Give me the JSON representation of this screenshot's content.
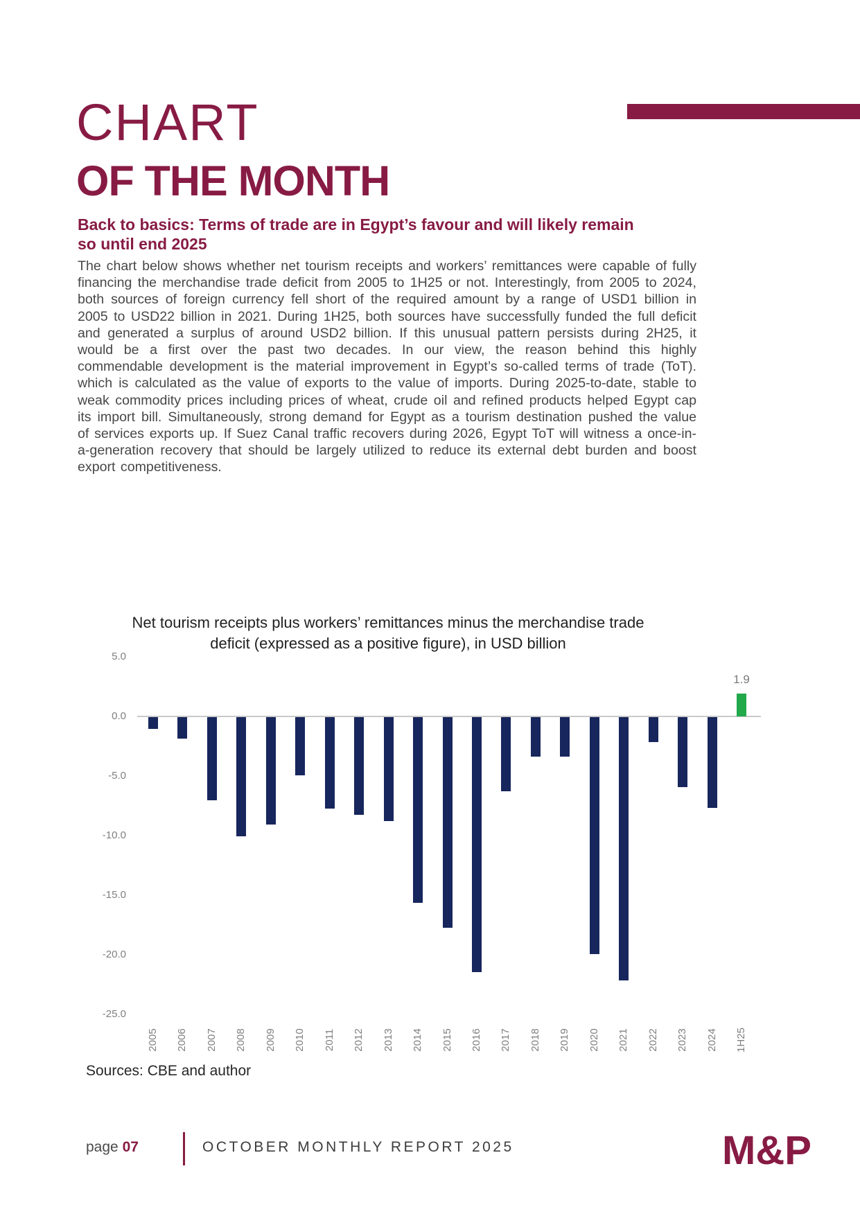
{
  "header": {
    "title_line1": "CHART",
    "title_line2": "OF THE MONTH",
    "subtitle_line1": "Back to basics: Terms of trade are in Egypt’s favour and will likely remain",
    "subtitle_line2": "so until end 2025"
  },
  "body_text": "The chart below shows whether net tourism receipts and workers’ remittances were capable of fully financing the merchandise trade deficit from 2005 to 1H25 or not. Interestingly, from 2005 to 2024, both sources of foreign currency fell short of the required amount by a range of USD1 billion in 2005 to USD22 billion in 2021. During 1H25, both sources have successfully funded the full deficit and generated a surplus of around USD2 billion. If this unusual pattern persists during 2H25, it would be a first over the past two decades. In our view, the reason behind this highly commendable development is the material improvement in Egypt’s so-called terms of trade (ToT). which is calculated as the value of exports to the value of imports. During 2025-to-date, stable to weak commodity prices including prices of wheat, crude oil and refined products helped Egypt cap its import bill. Simultaneously, strong demand for Egypt as a tourism destination pushed the value of services exports up. If Suez Canal traffic recovers during 2026, Egypt ToT will witness a once-in-a-generation recovery that should be largely utilized to reduce its external debt burden and boost export competitiveness.",
  "chart_data": {
    "type": "bar",
    "title": "Net tourism receipts plus workers’ remittances minus the merchandise trade deficit (expressed as a positive figure), in USD billion",
    "title_line1": "Net tourism receipts plus workers’ remittances minus the merchandise trade",
    "title_line2": "deficit (expressed as a positive figure), in USD billion",
    "categories": [
      "2005",
      "2006",
      "2007",
      "2008",
      "2009",
      "2010",
      "2011",
      "2012",
      "2013",
      "2014",
      "2015",
      "2016",
      "2017",
      "2018",
      "2019",
      "2020",
      "2021",
      "2022",
      "2023",
      "2024",
      "1H25"
    ],
    "values": [
      -1.0,
      -1.8,
      -7.0,
      -10.0,
      -9.0,
      -4.9,
      -7.7,
      -8.2,
      -8.7,
      -15.6,
      -17.7,
      -21.4,
      -6.2,
      -3.3,
      -3.3,
      -19.9,
      -22.1,
      -2.1,
      -5.9,
      -7.6,
      1.9
    ],
    "ytick_labels": [
      "5.0",
      "0.0",
      "-5.0",
      "-10.0",
      "-15.0",
      "-20.0",
      "-25.0"
    ],
    "yticks": [
      5,
      0,
      -5,
      -10,
      -15,
      -20,
      -25
    ],
    "ylim": [
      -25,
      5
    ],
    "gridlines": false,
    "legend": "none",
    "data_label": {
      "category": "1H25",
      "text": "1.9"
    },
    "negative_color": "#17265C",
    "positive_color": "#22A94C"
  },
  "sources": "Sources: CBE and author",
  "footer": {
    "page_label": "page ",
    "page_number": "07",
    "report_title": "OCTOBER MONTHLY REPORT 2025",
    "logo_text": "M&P"
  },
  "colors": {
    "maroon": "#871B44",
    "navy": "#17265C",
    "green": "#22A94C",
    "axis_gray": "#7F7F7F"
  }
}
